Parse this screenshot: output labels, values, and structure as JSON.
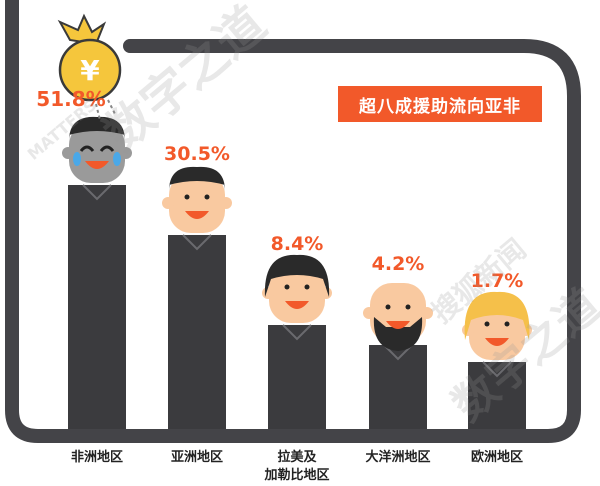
{
  "chart_data": {
    "type": "bar",
    "title": "超八成援助流向亚非",
    "categories": [
      "非洲地区",
      "亚洲地区",
      "拉美及加勒比地区",
      "大洋洲地区",
      "欧洲地区"
    ],
    "category_lines": [
      [
        "非洲地区"
      ],
      [
        "亚洲地区"
      ],
      [
        "拉美及",
        "加勒比地区"
      ],
      [
        "大洋洲地区"
      ],
      [
        "欧洲地区"
      ]
    ],
    "values": [
      51.8,
      30.5,
      8.4,
      4.2,
      1.7
    ],
    "value_labels": [
      "51.8%",
      "30.5%",
      "8.4%",
      "4.2%",
      "1.7%"
    ],
    "xlabel": "",
    "ylabel": ""
  },
  "watermark": {
    "brand": "搜狐新闻",
    "name": "数字之道",
    "latin": "MATTERS"
  },
  "colors": {
    "accent": "#f2592a",
    "bar": "#3b3b3e",
    "frame": "#444448",
    "skin": "#f9c9a0",
    "hair_black": "#2a2a2a",
    "hair_blond": "#f5c04a",
    "coin": "#f5c63c"
  },
  "icons": [
    "money-bag-icon",
    "crying-face-icon",
    "smiling-face-icon"
  ]
}
